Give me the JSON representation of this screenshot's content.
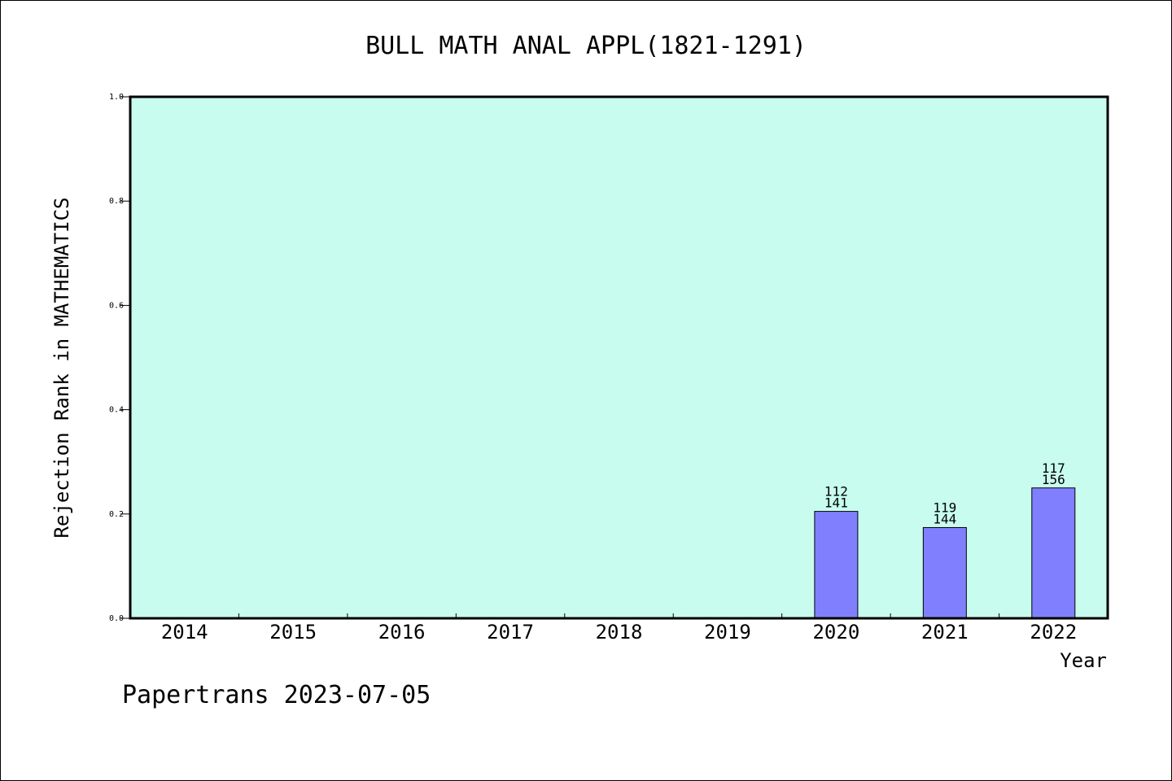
{
  "chart_data": {
    "type": "bar",
    "title": "BULL MATH ANAL APPL(1821-1291)",
    "xlabel": "Year",
    "ylabel": "Rejection Rank in MATHEMATICS",
    "categories": [
      "2014",
      "2015",
      "2016",
      "2017",
      "2018",
      "2019",
      "2020",
      "2021",
      "2022"
    ],
    "values": [
      null,
      null,
      null,
      null,
      null,
      null,
      0.205,
      0.174,
      0.25
    ],
    "bar_labels": [
      null,
      null,
      null,
      null,
      null,
      null,
      {
        "top": "112",
        "bottom": "141"
      },
      {
        "top": "119",
        "bottom": "144"
      },
      {
        "top": "117",
        "bottom": "156"
      }
    ],
    "ylim": [
      0,
      1.0
    ],
    "yticks": [
      "0.0",
      "0.2",
      "0.4",
      "0.6",
      "0.8",
      "1.0"
    ],
    "ytick_values": [
      0,
      0.2,
      0.4,
      0.6,
      0.8,
      1.0
    ],
    "grid": false,
    "colors": {
      "plot_background": "#c8fcee",
      "bar_fill": "#8080ff",
      "bar_stroke": "#000000"
    }
  },
  "footer": {
    "text": "Papertrans 2023-07-05"
  }
}
